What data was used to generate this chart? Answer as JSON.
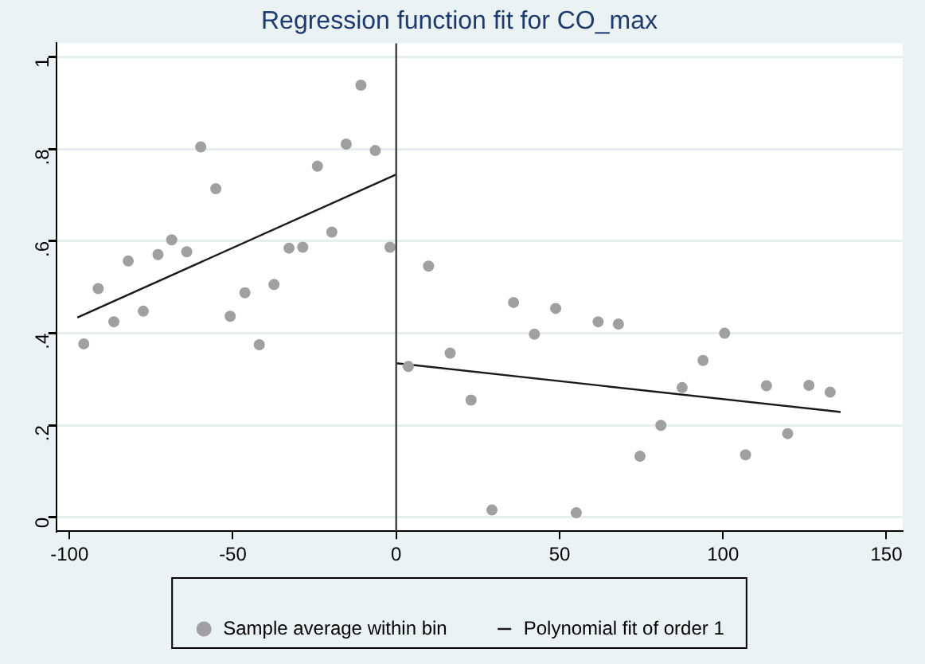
{
  "chart_data": {
    "type": "scatter",
    "title": "Regression function fit for CO_max",
    "series": [
      {
        "name": "Sample average within bin",
        "marker": "circle",
        "color": "#a0a0a0",
        "x": [
          -95.6,
          -91.2,
          -86.4,
          -82,
          -77.4,
          -72.9,
          -68.7,
          -64.1,
          -59.8,
          -55.2,
          -50.8,
          -46.3,
          -41.9,
          -37.4,
          -32.8,
          -28.6,
          -24.1,
          -19.7,
          -15.3,
          -10.8,
          -6.4,
          -1.9,
          3.7,
          9.9,
          16.5,
          22.9,
          29.3,
          35.9,
          42.3,
          48.8,
          55.1,
          61.8,
          68,
          74.6,
          81,
          87.5,
          93.9,
          100.5,
          106.9,
          113.3,
          119.8,
          126.3,
          132.8
        ],
        "values": [
          0.377,
          0.497,
          0.425,
          0.557,
          0.448,
          0.571,
          0.603,
          0.577,
          0.805,
          0.714,
          0.437,
          0.488,
          0.375,
          0.506,
          0.585,
          0.587,
          0.763,
          0.62,
          0.811,
          0.939,
          0.797,
          0.587,
          0.328,
          0.546,
          0.357,
          0.255,
          0.016,
          0.467,
          0.398,
          0.454,
          0.01,
          0.425,
          0.42,
          0.133,
          0.2,
          0.282,
          0.341,
          0.4,
          0.136,
          0.286,
          0.182,
          0.287,
          0.272
        ]
      },
      {
        "name": "Polynomial fit of order 1",
        "type": "line",
        "marker": "none",
        "color": "#1a1a1a",
        "x": [
          -97.6,
          0
        ],
        "values": [
          0.434,
          0.745
        ]
      },
      {
        "type": "line",
        "marker": "none",
        "color": "#1a1a1a",
        "x": [
          0,
          136
        ],
        "values": [
          0.335,
          0.229
        ]
      }
    ],
    "xlim": [
      -104,
      155
    ],
    "xticks": [
      -100,
      -50,
      0,
      50,
      100,
      150
    ],
    "ylim": [
      -0.03,
      1.03
    ],
    "yticks": [
      {
        "value": 0,
        "label": "0"
      },
      {
        "value": 0.2,
        "label": ".2"
      },
      {
        "value": 0.4,
        "label": ".4"
      },
      {
        "value": 0.6,
        "label": ".6"
      },
      {
        "value": 0.8,
        "label": ".8"
      },
      {
        "value": 1,
        "label": "1"
      }
    ],
    "ref_lines": [
      {
        "axis": "x",
        "value": 0,
        "color": "#404040"
      }
    ],
    "grid": "y",
    "legend": "bottom"
  }
}
